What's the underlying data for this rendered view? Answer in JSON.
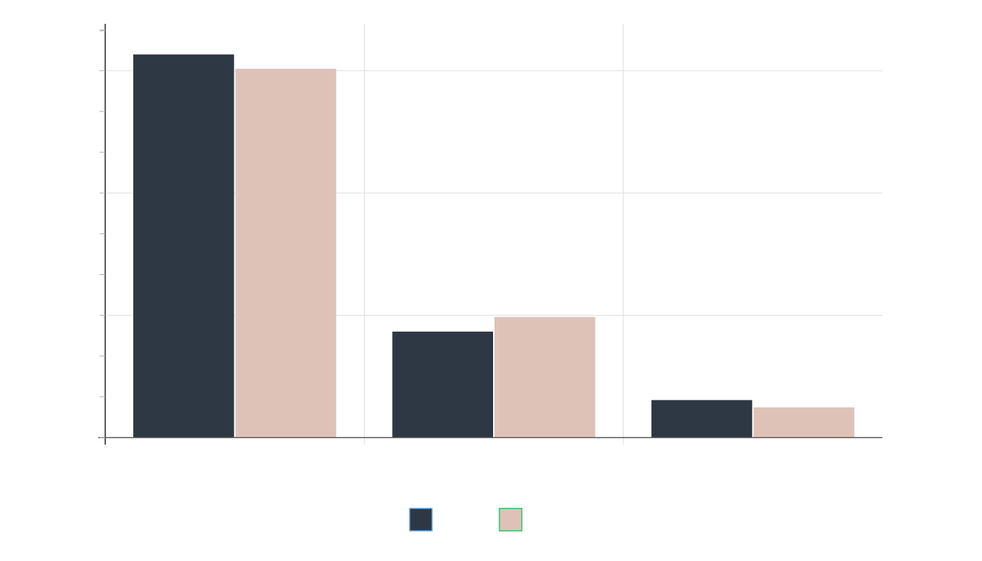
{
  "chart_data": {
    "type": "bar",
    "title": "",
    "xlabel": "",
    "ylabel": "",
    "categories": [
      "",
      "",
      ""
    ],
    "series": [
      {
        "name": "",
        "values": [
          94,
          26,
          9.2
        ],
        "color": "#2e3844",
        "legend_border": "#6aa8e0"
      },
      {
        "name": "",
        "values": [
          90.5,
          29.6,
          7.4
        ],
        "color": "#dfc2b7",
        "legend_border": "#2fbf6a"
      }
    ],
    "ylim": [
      0,
      101.5
    ],
    "yticks_major": [
      0,
      30,
      60,
      90
    ],
    "yticks_minor": [
      10,
      20,
      40,
      50,
      70,
      80,
      100
    ],
    "grid": true,
    "legend_position": "bottom-center",
    "colors": {
      "axis": "#555555",
      "grid": "#dddddd",
      "background": "#ffffff"
    }
  }
}
